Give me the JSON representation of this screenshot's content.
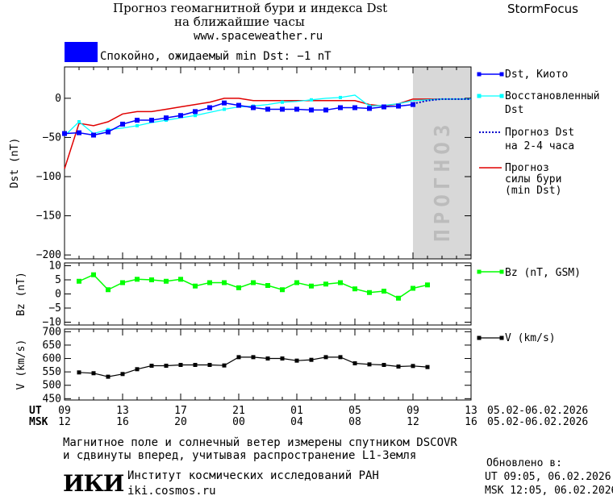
{
  "header": {
    "title_line1": "Прогноз геомагнитной бури и индекса Dst",
    "title_line2": "на ближайшие часы",
    "url": "www.spaceweather.ru",
    "brand": "StormFocus"
  },
  "status": {
    "color": "#0000ff",
    "text": "Спокойно, ожидаемый min Dst: −1 nT"
  },
  "forecast_zone_label": "ПРОГНОЗ",
  "legend": {
    "dst_kyoto": "Dst, Киото",
    "restored_line1": "Восстановленный",
    "restored_line2": "Dst",
    "forecast_line1": "Прогноз Dst",
    "forecast_line2": "на 2-4 часа",
    "storm_line1": "Прогноз",
    "storm_line2": "силы бури",
    "storm_line3": "(min Dst)",
    "bz": "Bz (nT, GSM)",
    "v": "V (km/s)"
  },
  "time_axis": {
    "ut_label": "UT",
    "msk_label": "MSK",
    "ut_ticks": [
      "09",
      "13",
      "17",
      "21",
      "01",
      "05",
      "09",
      "13"
    ],
    "msk_ticks": [
      "12",
      "16",
      "20",
      "00",
      "04",
      "08",
      "12",
      "16"
    ],
    "ut_range": "05.02-06.02.2026",
    "msk_range": "05.02-06.02.2026"
  },
  "footer": {
    "note_line1": "Магнитное поле и солнечный ветер измерены спутником DSCOVR",
    "note_line2": "и сдвинуты вперед, учитывая распространение L1-Земля",
    "logo": "ИКИ",
    "institute": "Институт космических исследований РАН",
    "site": "iki.cosmos.ru",
    "updated_label": "Обновлено в:",
    "updated_ut": "UT  09:05, 06.02.2026",
    "updated_msk": "MSK 12:05, 06.02.2026"
  },
  "colors": {
    "dst": "#0000ff",
    "restored": "#00ffff",
    "forecast": "#0000cc",
    "storm": "#e00000",
    "bz": "#00ff00",
    "v": "#000000",
    "forecast_zone": "#d8d8d8"
  },
  "chart_data": [
    {
      "type": "line",
      "ylabel": "Dst (nT)",
      "xlim_hours": [
        0,
        28
      ],
      "ylim": [
        -205,
        40
      ],
      "yticks": [
        0,
        -50,
        -100,
        -150,
        -200
      ],
      "forecast_zone_hours": [
        24,
        28
      ],
      "series": [
        {
          "name": "Dst, Киото",
          "x": [
            0,
            1,
            2,
            3,
            4,
            5,
            6,
            7,
            8,
            9,
            10,
            11,
            12,
            13,
            14,
            15,
            16,
            17,
            18,
            19,
            20,
            21,
            22,
            23,
            24
          ],
          "y": [
            -45,
            -44,
            -47,
            -43,
            -33,
            -28,
            -28,
            -25,
            -22,
            -17,
            -12,
            -6,
            -9,
            -12,
            -14,
            -14,
            -14,
            -15,
            -15,
            -12,
            -12,
            -13,
            -11,
            -10,
            -8
          ]
        },
        {
          "name": "Восстановленный Dst",
          "x": [
            0,
            1,
            2,
            3,
            4,
            5,
            6,
            7,
            8,
            9,
            10,
            11,
            12,
            13,
            14,
            15,
            16,
            17,
            18,
            19,
            20,
            21,
            22,
            23,
            24,
            25,
            26,
            27,
            28
          ],
          "y": [
            -48,
            -30,
            -45,
            -40,
            -38,
            -35,
            -31,
            -28,
            -25,
            -22,
            -18,
            -14,
            -11,
            -10,
            -8,
            -5,
            -4,
            -2,
            0,
            1,
            4,
            -10,
            -9,
            -7,
            -3,
            -2,
            -1,
            -1,
            -1
          ]
        },
        {
          "name": "Прогноз Dst на 2-4 часа",
          "x": [
            24,
            25,
            26,
            27,
            28
          ],
          "y": [
            -7,
            -3,
            -1,
            -1,
            -1
          ]
        },
        {
          "name": "Прогноз силы бури (min Dst)",
          "x": [
            0,
            1,
            2,
            3,
            4,
            5,
            6,
            7,
            8,
            9,
            10,
            11,
            12,
            13,
            14,
            15,
            16,
            17,
            18,
            19,
            20,
            21,
            22,
            23,
            24,
            25,
            26,
            27,
            28
          ],
          "y": [
            -90,
            -32,
            -35,
            -30,
            -20,
            -17,
            -17,
            -14,
            -11,
            -8,
            -5,
            0,
            0,
            -3,
            -3,
            -3,
            -3,
            -3,
            -3,
            -3,
            -3,
            -8,
            -10,
            -7,
            -1,
            -1,
            -1,
            -1,
            -1
          ]
        }
      ]
    },
    {
      "type": "line",
      "ylabel": "Bz (nT)",
      "ylim": [
        -11,
        11
      ],
      "yticks": [
        10,
        5,
        0,
        -5,
        -10
      ],
      "series": [
        {
          "name": "Bz (nT, GSM)",
          "x": [
            1,
            2,
            3,
            4,
            5,
            6,
            7,
            8,
            9,
            10,
            11,
            12,
            13,
            14,
            15,
            16,
            17,
            18,
            19,
            20,
            21,
            22,
            23,
            24,
            25
          ],
          "y": [
            4.5,
            6.8,
            1.5,
            4,
            5.2,
            5,
            4.5,
            5.2,
            2.8,
            4,
            4,
            2.2,
            4,
            3,
            1.5,
            4,
            2.8,
            3.5,
            4,
            1.8,
            0.5,
            1,
            -1.5,
            2,
            3.2
          ]
        }
      ]
    },
    {
      "type": "line",
      "ylabel": "V (km/s)",
      "ylim": [
        445,
        710
      ],
      "yticks": [
        700,
        650,
        600,
        550,
        500,
        450
      ],
      "series": [
        {
          "name": "V (km/s)",
          "x": [
            1,
            2,
            3,
            4,
            5,
            6,
            7,
            8,
            9,
            10,
            11,
            12,
            13,
            14,
            15,
            16,
            17,
            18,
            19,
            20,
            21,
            22,
            23,
            24,
            25
          ],
          "y": [
            548,
            545,
            532,
            542,
            560,
            573,
            573,
            576,
            576,
            576,
            574,
            605,
            605,
            600,
            600,
            592,
            595,
            605,
            605,
            582,
            578,
            576,
            570,
            572,
            568
          ]
        }
      ]
    }
  ]
}
